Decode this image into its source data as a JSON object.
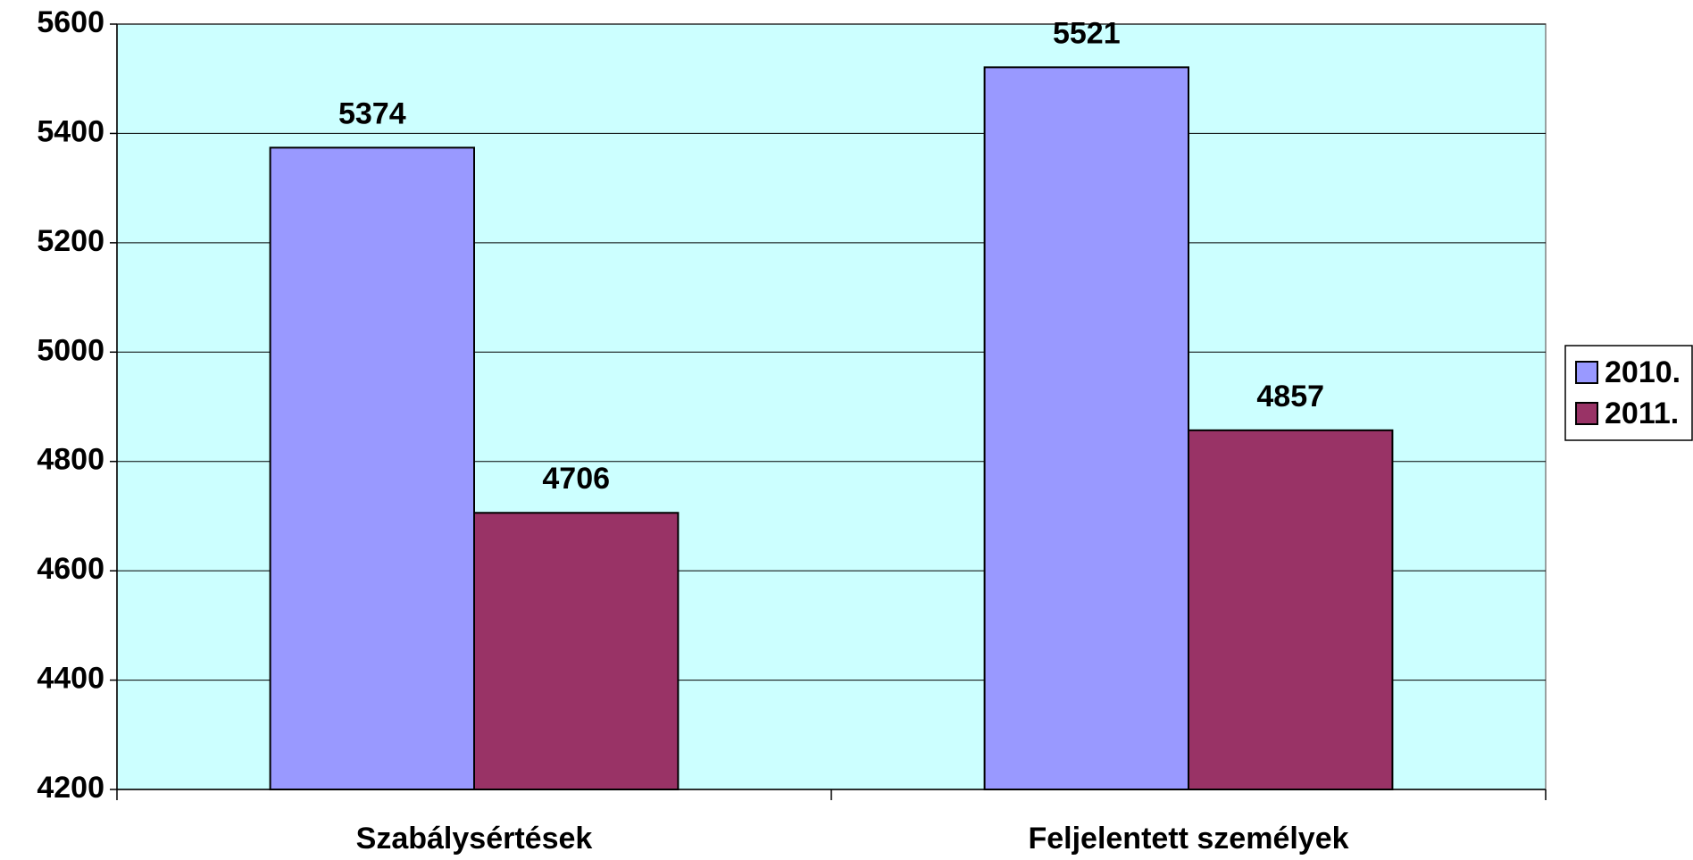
{
  "chart_data": {
    "type": "bar",
    "categories": [
      "Szabálysértések",
      "Feljelentett személyek"
    ],
    "series": [
      {
        "name": "2010.",
        "color": "#9999ff",
        "values": [
          5374,
          5521
        ]
      },
      {
        "name": "2011.",
        "color": "#993366",
        "values": [
          4706,
          4857
        ]
      }
    ],
    "ylim": [
      4200,
      5600
    ],
    "yticks": [
      4200,
      4400,
      4600,
      4800,
      5000,
      5200,
      5400,
      5600
    ],
    "grid": true,
    "legend": "right",
    "background": "#ccffff"
  }
}
